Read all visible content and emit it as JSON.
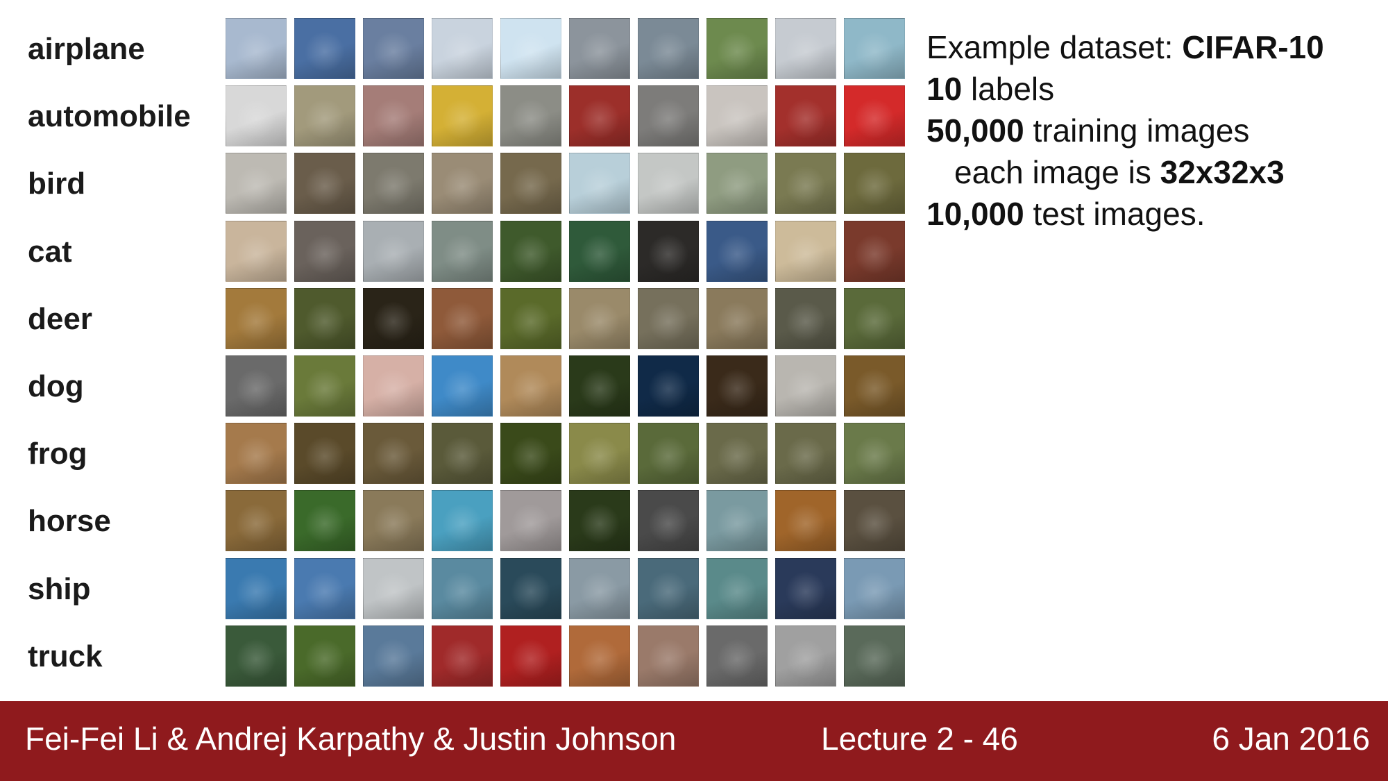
{
  "dataset_info": {
    "line1_prefix": "Example dataset: ",
    "line1_bold": "CIFAR-10",
    "line2_bold": "10",
    "line2_rest": " labels",
    "line3_bold": "50,000",
    "line3_rest": " training images",
    "line4_prefix": "each image is ",
    "line4_bold": "32x32x3",
    "line5_bold": "10,000",
    "line5_rest": " test images."
  },
  "classes": [
    {
      "label": "airplane",
      "colors": [
        "#a8b9cf",
        "#4a6fa3",
        "#6a7fa0",
        "#c9d3de",
        "#cfe3f0",
        "#8c949c",
        "#7b8a96",
        "#6d8a4e",
        "#c6cbd1",
        "#8fb8c8"
      ]
    },
    {
      "label": "automobile",
      "colors": [
        "#d8d8d8",
        "#a29a7c",
        "#a57d78",
        "#d4b035",
        "#8c8d86",
        "#9c2f2a",
        "#7d7c7a",
        "#c9c4bf",
        "#a3302c",
        "#d42a2a"
      ]
    },
    {
      "label": "bird",
      "colors": [
        "#bdbab3",
        "#6a5d4b",
        "#7d7a6e",
        "#9a8c76",
        "#76694d",
        "#b8cfd9",
        "#c4c7c5",
        "#8f9c81",
        "#7a7a52",
        "#6d6a3d"
      ]
    },
    {
      "label": "cat",
      "colors": [
        "#c9b59c",
        "#6a625c",
        "#a9afb3",
        "#7f8d86",
        "#3f5a2c",
        "#2f5a3a",
        "#2c2a28",
        "#3a5a88",
        "#cdbb9a",
        "#7a3a2c"
      ]
    },
    {
      "label": "deer",
      "colors": [
        "#a37a3c",
        "#4f5a2d",
        "#2a2418",
        "#8f5a3a",
        "#5a6a2a",
        "#9a8a6a",
        "#76705c",
        "#8a7a5c",
        "#5a5a4a",
        "#5a6a3a"
      ]
    },
    {
      "label": "dog",
      "colors": [
        "#6a6a6a",
        "#6a7a3a",
        "#d6b0a6",
        "#3f8ac8",
        "#b08a5a",
        "#2a3a1a",
        "#102a48",
        "#3a2a1a",
        "#b9b6b0",
        "#7a5a2a"
      ]
    },
    {
      "label": "frog",
      "colors": [
        "#a57a4c",
        "#5a4a2a",
        "#6a5a3a",
        "#5a5a3a",
        "#3a4a1a",
        "#8a8a4a",
        "#5a6a3a",
        "#6a6a4a",
        "#6a6a4a",
        "#6a7a4a"
      ]
    },
    {
      "label": "horse",
      "colors": [
        "#8a6a3a",
        "#3a6a2a",
        "#8a7a5a",
        "#4aa0c0",
        "#a09a9a",
        "#2a3a1a",
        "#4a4a4a",
        "#7a9aa0",
        "#a0652a",
        "#5a5040"
      ]
    },
    {
      "label": "ship",
      "colors": [
        "#3a7ab0",
        "#4a7ab0",
        "#c0c4c6",
        "#5a8aa0",
        "#2a4a5a",
        "#8a9aa4",
        "#4a6a7a",
        "#5a8a8a",
        "#2a3a5a",
        "#7a9ab4"
      ]
    },
    {
      "label": "truck",
      "colors": [
        "#3a5a3a",
        "#4a6a2a",
        "#5a7a9a",
        "#a02a2a",
        "#b02020",
        "#b06a3a",
        "#9a7a6a",
        "#6a6a6a",
        "#a0a0a0",
        "#5a6a5a"
      ]
    }
  ],
  "footer": {
    "authors": "Fei-Fei Li & Andrej Karpathy & Justin Johnson",
    "lecture": "Lecture 2 - 46",
    "date": "6 Jan 2016"
  }
}
